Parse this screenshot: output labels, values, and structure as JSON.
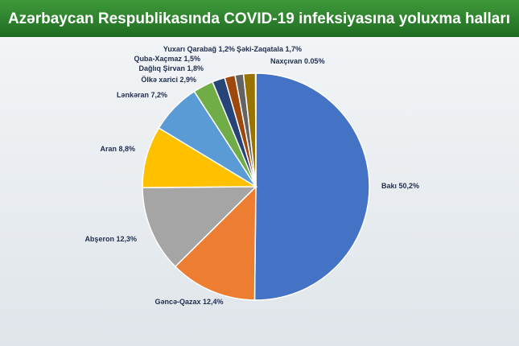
{
  "chart_data": {
    "type": "pie",
    "title": "Azərbaycan Respublikasında COVID-19 infeksiyasına yoluxma halları",
    "categories": [
      "Bakı",
      "Gəncə-Qazax",
      "Abşeron",
      "Aran",
      "Lənkəran",
      "Ölkə xarici",
      "Dağlıq Şirvan",
      "Quba-Xaçmaz",
      "Yuxarı Qarabağ",
      "Şəki-Zaqatala",
      "Naxçıvan"
    ],
    "values": [
      50.2,
      12.4,
      12.3,
      8.8,
      7.2,
      2.9,
      1.8,
      1.5,
      1.2,
      1.7,
      0.05
    ],
    "value_labels": [
      "50,2%",
      "12,4%",
      "12,3%",
      "8,8%",
      "7,2%",
      "2,9%",
      "1,8%",
      "1,5%",
      "1,2%",
      "1,7%",
      "0.05%"
    ],
    "colors": [
      "#4472c4",
      "#ed7d31",
      "#a5a5a5",
      "#ffc000",
      "#5b9bd5",
      "#70ad47",
      "#264478",
      "#9e480e",
      "#636363",
      "#997300",
      "#255e91"
    ]
  }
}
